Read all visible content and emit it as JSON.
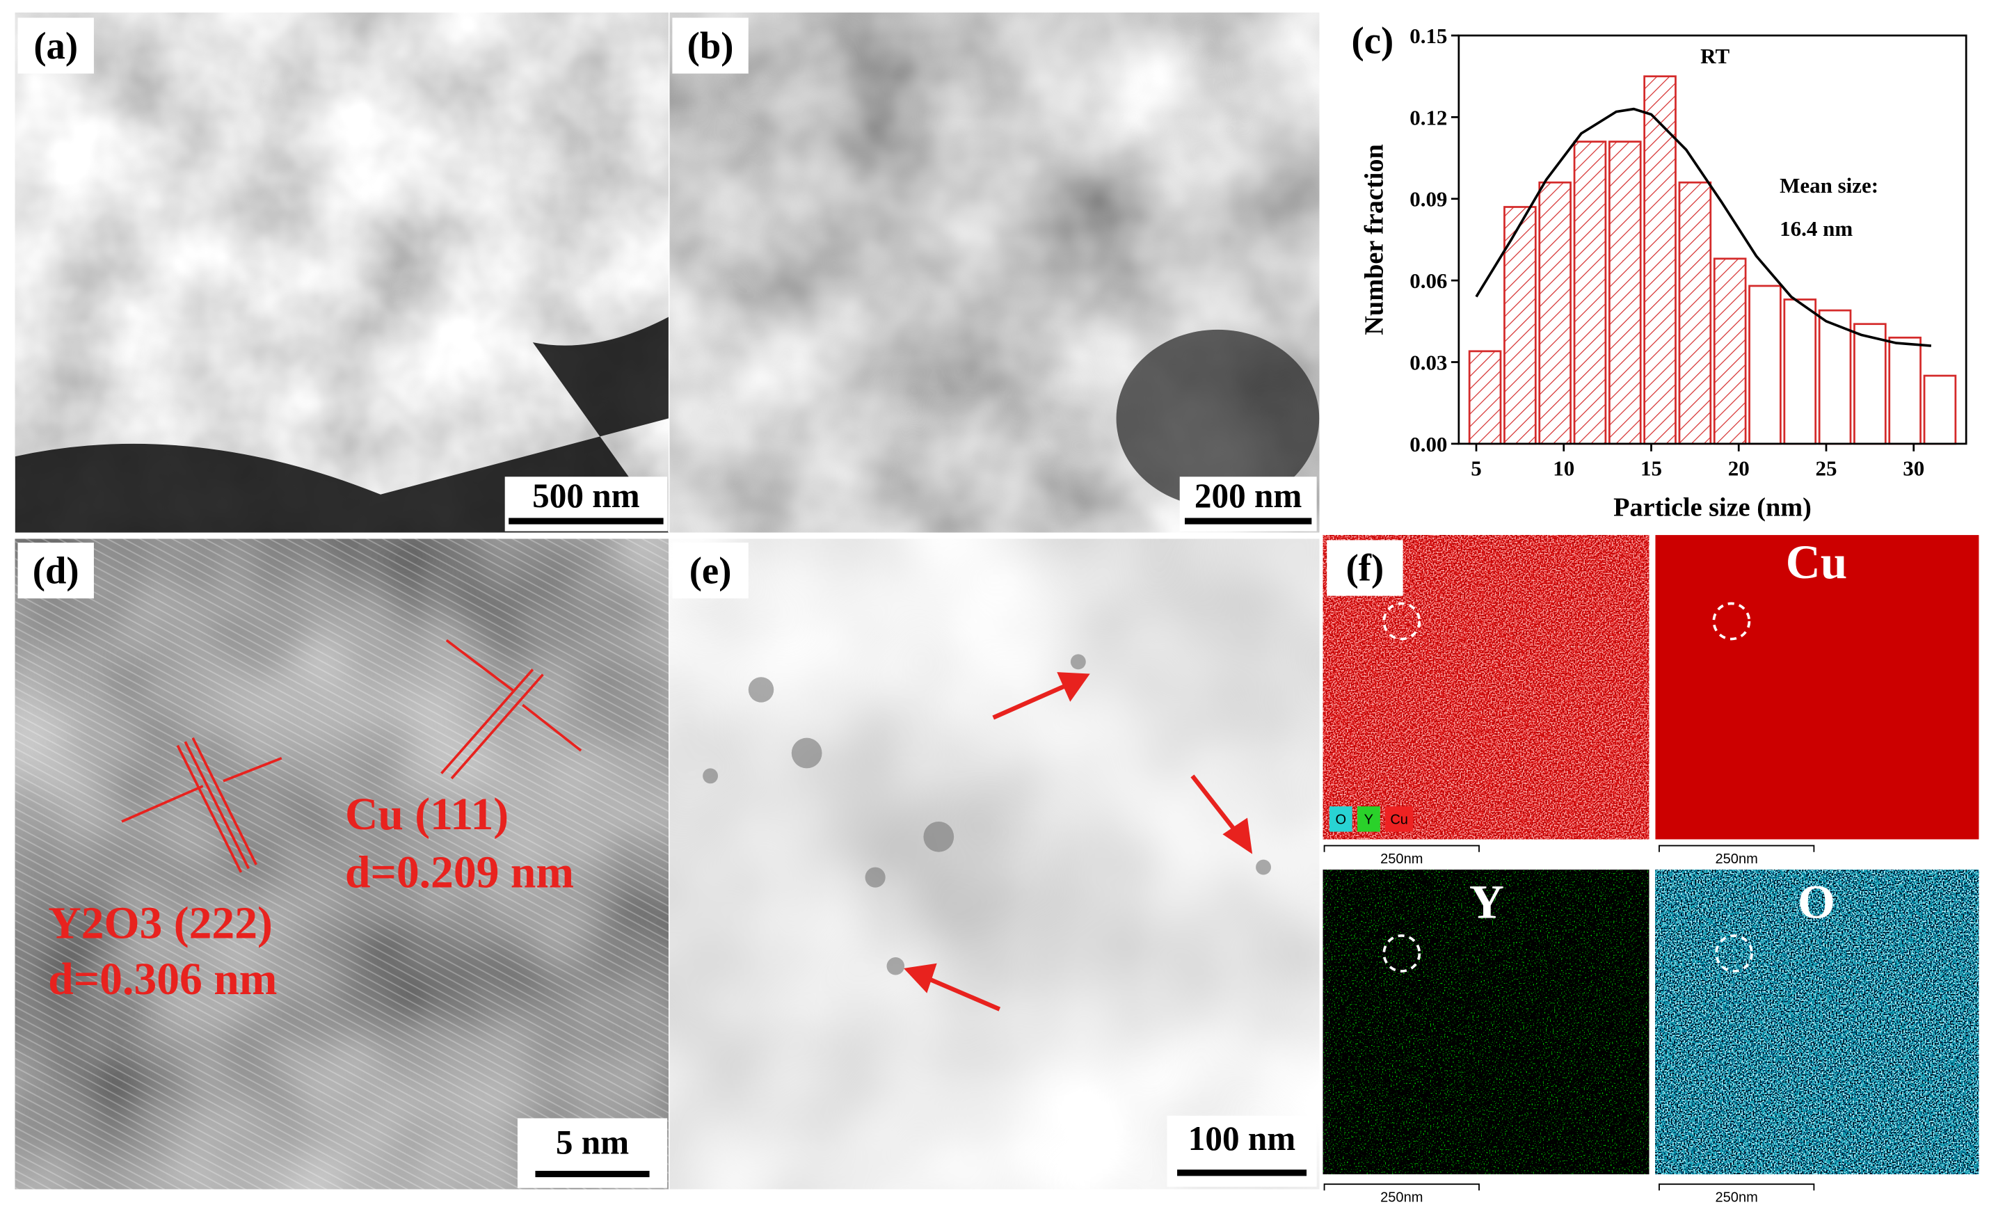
{
  "panels": {
    "a": {
      "label": "(a)",
      "scale_bar": "500 nm"
    },
    "b": {
      "label": "(b)",
      "scale_bar": "200 nm"
    },
    "d": {
      "label": "(d)",
      "scale_bar": "5 nm",
      "annotations": [
        "Cu (111)",
        "d=0.209 nm",
        "Y2O3 (222)",
        "d=0.306 nm"
      ]
    },
    "e": {
      "label": "(e)",
      "scale_bar": "100 nm"
    },
    "f": {
      "label": "(f)",
      "maps": [
        "Cu",
        "Y",
        "O"
      ],
      "legend": [
        "O",
        "Y",
        "Cu"
      ],
      "scale_bars": [
        "250nm",
        "250nm",
        "250nm",
        "250nm"
      ]
    }
  },
  "chart_data": {
    "type": "histogram",
    "panel_label": "(c)",
    "xlabel": "Particle size (nm)",
    "ylabel": "Number fraction",
    "annotations": [
      "RT",
      "Mean size:",
      "16.4 nm"
    ],
    "bins": [
      4.5,
      6.5,
      8.5,
      10.5,
      12.5,
      14.5,
      16.5,
      18.5,
      20.5,
      22.5,
      24.5,
      26.5,
      28.5,
      30.5,
      32.5
    ],
    "values": [
      0.034,
      0.087,
      0.096,
      0.111,
      0.111,
      0.135,
      0.096,
      0.068,
      0.058,
      0.053,
      0.049,
      0.044,
      0.039,
      0.025
    ],
    "color": "#d42a2a",
    "fit": {
      "color": "#000000",
      "x": [
        5,
        7,
        9,
        11,
        13,
        14,
        15,
        17,
        19,
        21,
        23,
        25,
        27,
        29,
        31
      ],
      "values": [
        0.054,
        0.075,
        0.097,
        0.114,
        0.122,
        0.123,
        0.121,
        0.108,
        0.089,
        0.069,
        0.054,
        0.045,
        0.04,
        0.037,
        0.036
      ]
    },
    "xlim": [
      4,
      33
    ],
    "ylim": [
      0,
      0.15
    ],
    "xticks": [
      5,
      10,
      15,
      20,
      25,
      30
    ],
    "yticks": [
      {
        "value": 0,
        "label": "0.00"
      },
      0.03,
      0.06,
      0.09,
      0.12,
      0.15
    ]
  }
}
